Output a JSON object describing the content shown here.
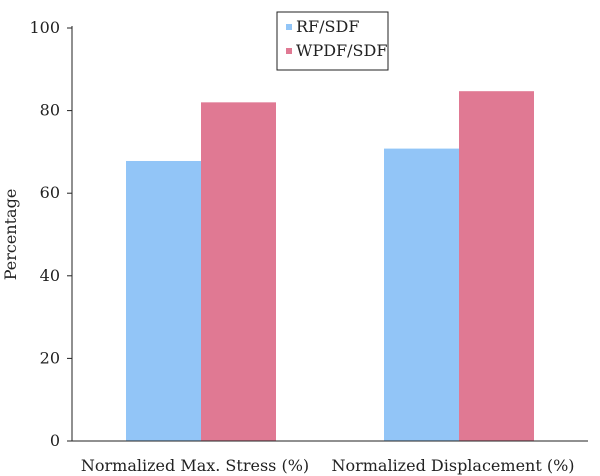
{
  "chart_data": {
    "type": "bar",
    "title": "",
    "xlabel": "",
    "ylabel": "Percentage",
    "ylim": [
      0,
      100
    ],
    "yticks": [
      0,
      20,
      40,
      60,
      80,
      100
    ],
    "categories": [
      "Normalized Max. Stress (%)",
      "Normalized Displacement (%)"
    ],
    "series": [
      {
        "name": "RF/SDF",
        "values": [
          67.8,
          70.8
        ],
        "color": "#92c5f7"
      },
      {
        "name": "WPDF/SDF",
        "values": [
          82.0,
          84.7
        ],
        "color": "#e07993"
      }
    ],
    "legend_position": "top-center",
    "grid": false
  }
}
